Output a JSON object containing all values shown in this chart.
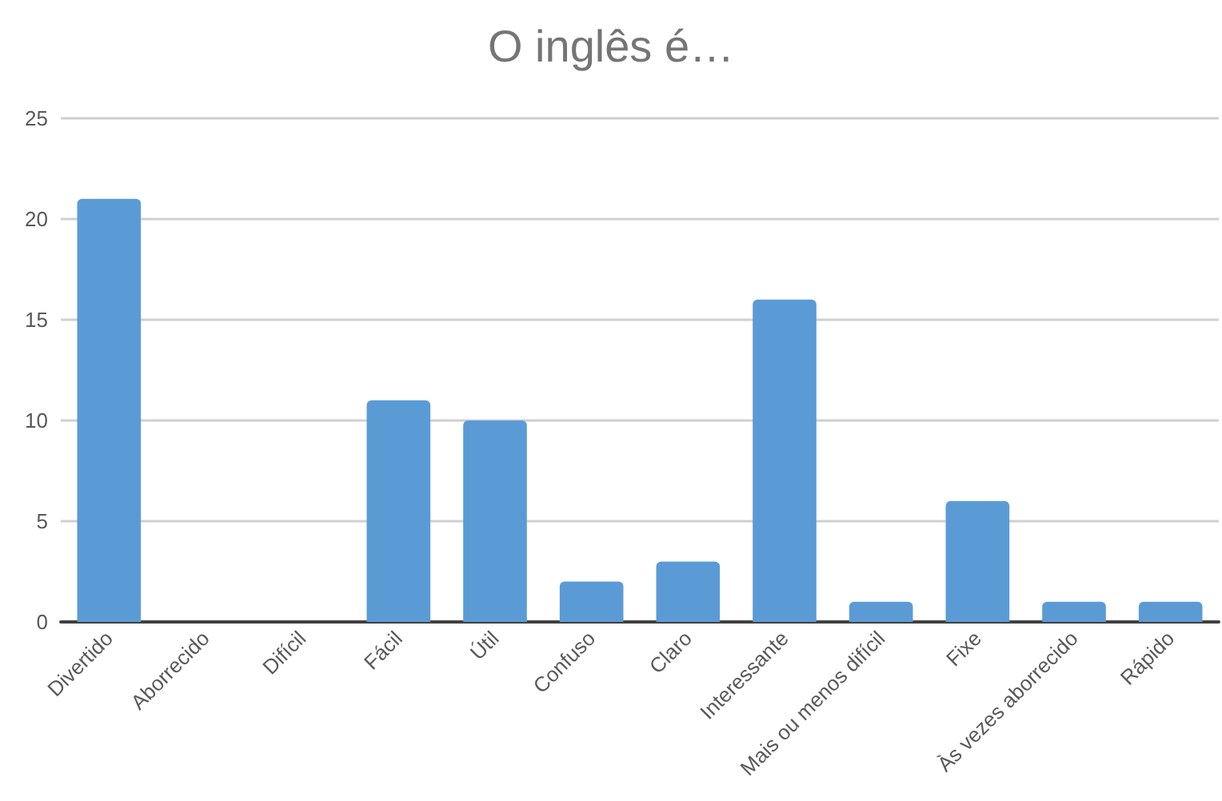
{
  "chart_data": {
    "type": "bar",
    "title": "O inglês é…",
    "categories": [
      "Divertido",
      "Aborrecido",
      "Difícil",
      "Fácil",
      "Útil",
      "Confuso",
      "Claro",
      "Interessante",
      "Mais ou menos difícil",
      "Fixe",
      "Às vezes aborrecido",
      "Rápido"
    ],
    "values": [
      21,
      0,
      0,
      11,
      10,
      2,
      3,
      16,
      1,
      6,
      1,
      1
    ],
    "color": "#5b9bd5",
    "ylim": [
      0,
      25
    ],
    "yticks": [
      0,
      5,
      10,
      15,
      20,
      25
    ],
    "grid": "y"
  }
}
